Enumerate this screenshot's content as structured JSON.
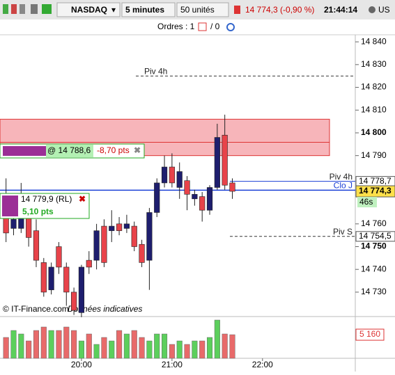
{
  "toolbar": {
    "symbol": "NASDAQ",
    "period": "5 minutes",
    "units": "50 unités",
    "quote": "14 774,3 (-0,90 %)",
    "time": "21:44:14",
    "market": "US"
  },
  "orders_bar": {
    "orders": "Ordres : 1",
    "positions": "/ 0"
  },
  "footer": {
    "source": "© IT-Finance.com",
    "note": "Données indicatives"
  },
  "order_boxes": [
    {
      "price": "@ 14 788,6",
      "pts": "-8,70 pts"
    },
    {
      "price": "14 779,9 (RL)",
      "pts": "5,10 pts"
    }
  ],
  "chart_data": {
    "type": "candlestick",
    "x": [
      0,
      1,
      2,
      3,
      4,
      5,
      6,
      7,
      8,
      9,
      10,
      11,
      12,
      13,
      14,
      15,
      16,
      17,
      18,
      19,
      20,
      21,
      22,
      23,
      24,
      25,
      26,
      27,
      28,
      29,
      30
    ],
    "open": [
      14767,
      14758,
      14758,
      14764,
      14757,
      14743,
      14731,
      14750,
      14741,
      14730,
      14721,
      14744,
      14744,
      14759,
      14757,
      14760,
      14758,
      14759,
      14751,
      14744,
      14765,
      14778,
      14785,
      14776,
      14779,
      14771,
      14772,
      14766,
      14776,
      14799,
      14778
    ],
    "high": [
      14780,
      14770,
      14778,
      14768,
      14762,
      14745,
      14743,
      14752,
      14743,
      14732,
      14742,
      14748,
      14760,
      14762,
      14766,
      14763,
      14764,
      14761,
      14753,
      14767,
      14780,
      14790,
      14791,
      14787,
      14781,
      14775,
      14774,
      14777,
      14804,
      14808,
      14780
    ],
    "low": [
      14752,
      14755,
      14756,
      14750,
      14741,
      14728,
      14729,
      14738,
      14724,
      14720,
      14719,
      14738,
      14740,
      14741,
      14752,
      14755,
      14756,
      14748,
      14741,
      14731,
      14763,
      14776,
      14776,
      14771,
      14766,
      14768,
      14761,
      14764,
      14775,
      14775,
      14771
    ],
    "close": [
      14756,
      14762,
      14770,
      14754,
      14744,
      14730,
      14741,
      14741,
      14730,
      14722,
      14741,
      14741,
      14757,
      14743,
      14759,
      14757,
      14760,
      14750,
      14743,
      14765,
      14778,
      14785,
      14778,
      14783,
      14773,
      14773,
      14766,
      14776,
      14798,
      14777,
      14774.3
    ],
    "up_color": "#1e1e6e",
    "down_color": "#e8434a",
    "xlim": [
      -0.8,
      46.3
    ],
    "xticks": [
      {
        "value": 10,
        "label": "20:00"
      },
      {
        "value": 22,
        "label": "21:00"
      },
      {
        "value": 34,
        "label": "22:00"
      }
    ],
    "ylim": [
      14720.8,
      14843.1
    ],
    "yticks": [
      {
        "value": 14840,
        "label": "14 840"
      },
      {
        "value": 14830,
        "label": "14 830"
      },
      {
        "value": 14820,
        "label": "14 820"
      },
      {
        "value": 14810,
        "label": "14 810"
      },
      {
        "value": 14800,
        "label": "14 800"
      },
      {
        "value": 14790,
        "label": "14 790"
      },
      {
        "value": 14760,
        "label": "14 760"
      },
      {
        "value": 14750,
        "label": "14 750"
      },
      {
        "value": 14740,
        "label": "14 740"
      },
      {
        "value": 14730,
        "label": "14 730"
      }
    ],
    "zone": [
      14790,
      14806
    ],
    "levels": [
      {
        "name": "Piv 4h",
        "value": 14825
      },
      {
        "name": "Piv 4h",
        "value": 14778.7,
        "value_label": "14 778,7"
      },
      {
        "name": "Clo J",
        "value": 14774.8
      },
      {
        "name": "Piv S",
        "value": 14754.5,
        "value_label": "14 754,5"
      }
    ],
    "last_price": {
      "value": 14774.3,
      "label": "14 774,3",
      "countdown": "46s"
    },
    "volume": {
      "values": [
        4560,
        6080,
        5320,
        3800,
        6080,
        6840,
        6080,
        6080,
        6840,
        6080,
        3800,
        5320,
        3040,
        4560,
        3800,
        6080,
        5320,
        6080,
        4560,
        3800,
        5320,
        5320,
        3040,
        3800,
        3040,
        3800,
        3800,
        4560,
        8360,
        5320,
        5160
      ],
      "last_label": "5 160",
      "vlim": [
        0,
        9120
      ],
      "up_color": "#5ccf5c",
      "down_color": "#e86a6a"
    }
  }
}
